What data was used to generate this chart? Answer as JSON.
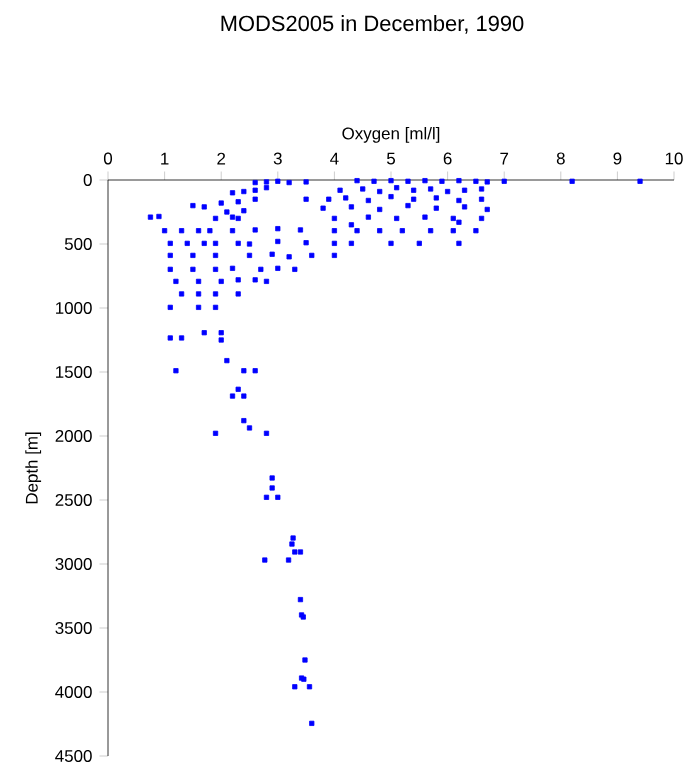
{
  "chart_data": {
    "type": "scatter",
    "title": "MODS2005 in December, 1990",
    "xlabel": "Oxygen [ml/l]",
    "ylabel": "Depth [m]",
    "xlim": [
      0,
      10
    ],
    "ylim": [
      4500,
      0
    ],
    "xticks": [
      0,
      1,
      2,
      3,
      4,
      5,
      6,
      7,
      8,
      9,
      10
    ],
    "yticks": [
      0,
      500,
      1000,
      1500,
      2000,
      2500,
      3000,
      3500,
      4000,
      4500
    ],
    "marker": "square",
    "grid": false,
    "series": [
      {
        "color": "#0000ff",
        "x": [
          2.6,
          2.8,
          3.0,
          3.2,
          3.5,
          4.4,
          4.7,
          5.0,
          5.3,
          5.6,
          5.9,
          6.2,
          6.5,
          6.7,
          7.0,
          8.2,
          9.4,
          4.1,
          4.5,
          4.8,
          5.1,
          5.4,
          5.7,
          6.0,
          6.3,
          6.6,
          3.9,
          4.2,
          4.6,
          5.0,
          5.4,
          5.8,
          6.2,
          6.6,
          3.8,
          4.3,
          4.8,
          5.3,
          5.8,
          6.3,
          6.7,
          4.0,
          4.6,
          5.1,
          5.6,
          6.1,
          6.6,
          2.2,
          2.4,
          2.6,
          2.8,
          2.0,
          2.3,
          2.6,
          2.1,
          2.4,
          1.9,
          2.2,
          0.75,
          0.9,
          1.5,
          1.7,
          2.3,
          3.5,
          4.3,
          6.2,
          1.0,
          1.3,
          1.6,
          1.8,
          2.2,
          2.6,
          3.0,
          3.4,
          4.0,
          4.4,
          4.8,
          5.2,
          5.7,
          6.1,
          6.5,
          1.1,
          1.4,
          1.7,
          1.9,
          2.3,
          2.5,
          3.0,
          3.5,
          4.0,
          4.3,
          5.0,
          5.5,
          6.2,
          1.1,
          1.5,
          1.9,
          2.5,
          2.9,
          3.2,
          3.6,
          4.0,
          1.1,
          1.5,
          1.9,
          2.2,
          2.7,
          3.0,
          3.3,
          1.2,
          1.6,
          2.0,
          2.3,
          2.6,
          2.8,
          1.3,
          1.6,
          1.9,
          2.3,
          1.1,
          1.6,
          1.9,
          1.7,
          2.0,
          1.1,
          1.3,
          2.0,
          1.2,
          2.1,
          2.4,
          2.6,
          2.3,
          2.2,
          2.4,
          2.4,
          2.5,
          1.9,
          2.8,
          2.9,
          2.9,
          2.8,
          3.0,
          3.27,
          3.25,
          3.3,
          3.4,
          2.77,
          3.19,
          3.4,
          3.42,
          3.45,
          3.48,
          3.42,
          3.46,
          3.3,
          3.56,
          3.6
        ],
        "values": [
          20,
          15,
          10,
          20,
          15,
          5,
          10,
          5,
          10,
          5,
          10,
          5,
          10,
          15,
          10,
          10,
          10,
          80,
          70,
          90,
          60,
          80,
          70,
          90,
          80,
          70,
          150,
          140,
          160,
          130,
          150,
          140,
          160,
          150,
          220,
          210,
          230,
          200,
          220,
          210,
          230,
          300,
          290,
          300,
          290,
          300,
          300,
          100,
          90,
          80,
          60,
          180,
          170,
          150,
          250,
          240,
          300,
          290,
          290,
          285,
          200,
          210,
          300,
          150,
          350,
          330,
          396,
          396,
          396,
          396,
          396,
          390,
          380,
          390,
          396,
          396,
          396,
          396,
          396,
          396,
          396,
          495,
          495,
          495,
          495,
          495,
          500,
          480,
          490,
          495,
          495,
          495,
          495,
          495,
          589,
          589,
          589,
          589,
          580,
          600,
          589,
          589,
          698,
          698,
          698,
          690,
          698,
          690,
          698,
          792,
          792,
          792,
          780,
          780,
          792,
          890,
          890,
          890,
          890,
          995,
          995,
          995,
          1193,
          1193,
          1234,
          1234,
          1250,
          1490,
          1411,
          1490,
          1490,
          1635,
          1688,
          1688,
          1880,
          1937,
          1979,
          1979,
          2328,
          2406,
          2479,
          2479,
          2797,
          2844,
          2906,
          2906,
          2969,
          2969,
          3278,
          3398,
          3414,
          3750,
          3891,
          3900,
          3959,
          3959,
          4245
        ]
      }
    ]
  }
}
